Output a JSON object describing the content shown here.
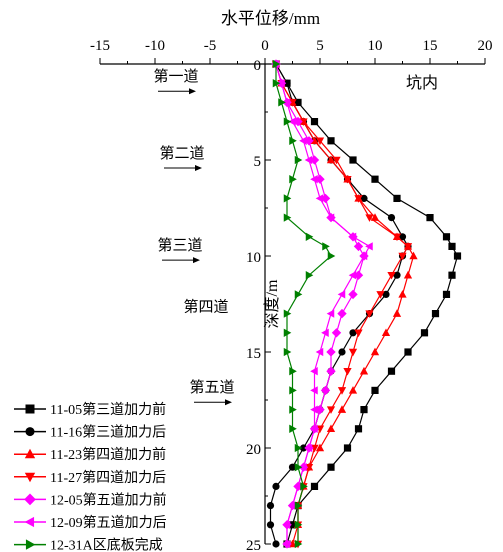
{
  "chart_data": {
    "type": "line",
    "xlabel": "水平位移/mm",
    "ylabel": "深度/m",
    "xlim": [
      -15,
      20
    ],
    "ylim": [
      0,
      25
    ],
    "x_ticks": [
      -15,
      -10,
      -5,
      0,
      5,
      10,
      15,
      20
    ],
    "y_ticks": [
      0,
      5,
      10,
      15,
      20,
      25
    ],
    "x_axis_position": "top",
    "y_axis_inverted": true,
    "grid": false,
    "legend_position": "bottom-left",
    "annotations": [
      {
        "text": "第一道",
        "depth": 1.0,
        "arrow": true
      },
      {
        "text": "第二道",
        "depth": 5.0,
        "arrow": true
      },
      {
        "text": "第三道",
        "depth": 9.8,
        "arrow": true
      },
      {
        "text": "第四道",
        "depth": 13.0,
        "arrow": false
      },
      {
        "text": "第五道",
        "depth": 17.2,
        "arrow": true
      },
      {
        "text": "坑内",
        "depth": 1.0,
        "arrow": false
      }
    ],
    "series": [
      {
        "name": "11-05第三道加力前",
        "color": "#000000",
        "marker": "square",
        "points": [
          [
            1,
            0
          ],
          [
            2,
            1
          ],
          [
            3,
            2
          ],
          [
            4.5,
            3
          ],
          [
            6,
            4
          ],
          [
            8,
            5
          ],
          [
            10,
            6
          ],
          [
            12,
            7
          ],
          [
            15,
            8
          ],
          [
            16.5,
            9
          ],
          [
            17,
            9.5
          ],
          [
            17.5,
            10
          ],
          [
            17,
            11
          ],
          [
            16.5,
            12
          ],
          [
            15.5,
            13
          ],
          [
            14.5,
            14
          ],
          [
            13,
            15
          ],
          [
            11.5,
            16
          ],
          [
            10,
            17
          ],
          [
            9,
            18
          ],
          [
            8.5,
            19
          ],
          [
            7.5,
            20
          ],
          [
            6,
            21
          ],
          [
            4.5,
            22
          ],
          [
            3,
            23
          ],
          [
            2.5,
            24
          ],
          [
            2,
            25
          ]
        ]
      },
      {
        "name": "11-16第三道加力后",
        "color": "#000000",
        "marker": "circle",
        "points": [
          [
            1,
            0
          ],
          [
            2,
            1
          ],
          [
            2.5,
            2
          ],
          [
            3.5,
            3
          ],
          [
            4.5,
            4
          ],
          [
            6,
            5
          ],
          [
            7.5,
            6
          ],
          [
            9,
            7
          ],
          [
            11.5,
            8
          ],
          [
            12.5,
            9
          ],
          [
            13,
            9.5
          ],
          [
            12.5,
            10
          ],
          [
            12,
            11
          ],
          [
            11,
            12
          ],
          [
            9.5,
            13
          ],
          [
            8,
            14
          ],
          [
            7,
            15
          ],
          [
            6,
            16
          ],
          [
            5.5,
            17
          ],
          [
            5,
            18
          ],
          [
            4.5,
            19
          ],
          [
            3.5,
            20
          ],
          [
            2.5,
            21
          ],
          [
            1,
            22
          ],
          [
            0.5,
            23
          ],
          [
            0.5,
            24
          ],
          [
            1,
            25
          ]
        ]
      },
      {
        "name": "11-23第四道加力前",
        "color": "#ff0000",
        "marker": "triangle-up",
        "points": [
          [
            1,
            0
          ],
          [
            1.5,
            1
          ],
          [
            2.5,
            2
          ],
          [
            3.5,
            3
          ],
          [
            4.5,
            4
          ],
          [
            6,
            5
          ],
          [
            7.5,
            6
          ],
          [
            8.5,
            7
          ],
          [
            10,
            8
          ],
          [
            12,
            9
          ],
          [
            13,
            9.5
          ],
          [
            13.5,
            10
          ],
          [
            13,
            11
          ],
          [
            12.5,
            12
          ],
          [
            12,
            13
          ],
          [
            11,
            14
          ],
          [
            10,
            15
          ],
          [
            9,
            16
          ],
          [
            8,
            17
          ],
          [
            7,
            18
          ],
          [
            6,
            19
          ],
          [
            5,
            20
          ],
          [
            4,
            21
          ],
          [
            3.5,
            22
          ],
          [
            3,
            23
          ],
          [
            3,
            24
          ],
          [
            2.5,
            25
          ]
        ]
      },
      {
        "name": "11-27第四道加力后",
        "color": "#ff0000",
        "marker": "triangle-down",
        "points": [
          [
            1,
            0
          ],
          [
            1.5,
            1
          ],
          [
            2.5,
            2
          ],
          [
            3.5,
            3
          ],
          [
            5,
            4
          ],
          [
            6.5,
            5
          ],
          [
            7.5,
            6
          ],
          [
            8.5,
            7
          ],
          [
            9.5,
            8
          ],
          [
            12,
            9
          ],
          [
            13,
            9.5
          ],
          [
            12.5,
            10
          ],
          [
            11.5,
            11
          ],
          [
            10.5,
            12
          ],
          [
            9.5,
            13
          ],
          [
            8.5,
            14
          ],
          [
            8,
            15
          ],
          [
            7.5,
            16
          ],
          [
            7,
            17
          ],
          [
            6,
            18
          ],
          [
            5,
            19
          ],
          [
            4.5,
            20
          ],
          [
            4,
            21
          ],
          [
            3.5,
            22
          ],
          [
            3,
            23
          ],
          [
            3,
            24
          ],
          [
            3,
            25
          ]
        ]
      },
      {
        "name": "12-05第五道加力前",
        "color": "#ff00ff",
        "marker": "diamond",
        "points": [
          [
            1,
            0
          ],
          [
            1.5,
            1
          ],
          [
            2,
            2
          ],
          [
            3,
            3
          ],
          [
            4,
            4
          ],
          [
            4.5,
            5
          ],
          [
            5,
            6
          ],
          [
            5.5,
            7
          ],
          [
            6,
            8
          ],
          [
            8,
            9
          ],
          [
            8.5,
            9.5
          ],
          [
            9,
            10
          ],
          [
            8.5,
            11
          ],
          [
            8,
            12
          ],
          [
            7,
            13
          ],
          [
            6.5,
            14
          ],
          [
            6,
            15
          ],
          [
            6,
            16
          ],
          [
            5.5,
            17
          ],
          [
            5,
            18
          ],
          [
            4.5,
            19
          ],
          [
            4,
            20
          ],
          [
            3.5,
            21
          ],
          [
            3,
            22
          ],
          [
            2.5,
            23
          ],
          [
            2,
            24
          ],
          [
            2,
            25
          ]
        ]
      },
      {
        "name": "12-09第五道加力后",
        "color": "#ff00ff",
        "marker": "triangle-left",
        "points": [
          [
            1,
            0
          ],
          [
            1.5,
            1
          ],
          [
            2,
            2
          ],
          [
            2.5,
            3
          ],
          [
            3.5,
            4
          ],
          [
            4,
            5
          ],
          [
            4.5,
            6
          ],
          [
            5,
            7
          ],
          [
            6,
            8
          ],
          [
            8,
            9
          ],
          [
            9.5,
            9.5
          ],
          [
            9,
            10
          ],
          [
            8,
            11
          ],
          [
            7,
            12
          ],
          [
            6,
            13
          ],
          [
            5.5,
            14
          ],
          [
            5,
            15
          ],
          [
            4.5,
            16
          ],
          [
            4.5,
            17
          ],
          [
            4.5,
            18
          ],
          [
            4.5,
            19
          ],
          [
            4,
            20
          ],
          [
            3.5,
            21
          ],
          [
            3,
            22
          ],
          [
            2.5,
            23
          ],
          [
            2,
            24
          ],
          [
            2,
            25
          ]
        ]
      },
      {
        "name": "12-31A区底板完成",
        "color": "#008000",
        "marker": "triangle-right",
        "points": [
          [
            1,
            0
          ],
          [
            1,
            1
          ],
          [
            1.5,
            2
          ],
          [
            2,
            3
          ],
          [
            2.5,
            4
          ],
          [
            3,
            5
          ],
          [
            2.5,
            6
          ],
          [
            2,
            7
          ],
          [
            2,
            8
          ],
          [
            4,
            9
          ],
          [
            5.5,
            9.5
          ],
          [
            6,
            10
          ],
          [
            4,
            11
          ],
          [
            3,
            12
          ],
          [
            2,
            13
          ],
          [
            2,
            14
          ],
          [
            2,
            15
          ],
          [
            2.5,
            16
          ],
          [
            2.5,
            17
          ],
          [
            2.5,
            18
          ],
          [
            2.5,
            19
          ],
          [
            3,
            20
          ],
          [
            3,
            21
          ],
          [
            3.5,
            22
          ],
          [
            3,
            23
          ],
          [
            3,
            24
          ],
          [
            3,
            25
          ]
        ]
      }
    ]
  }
}
